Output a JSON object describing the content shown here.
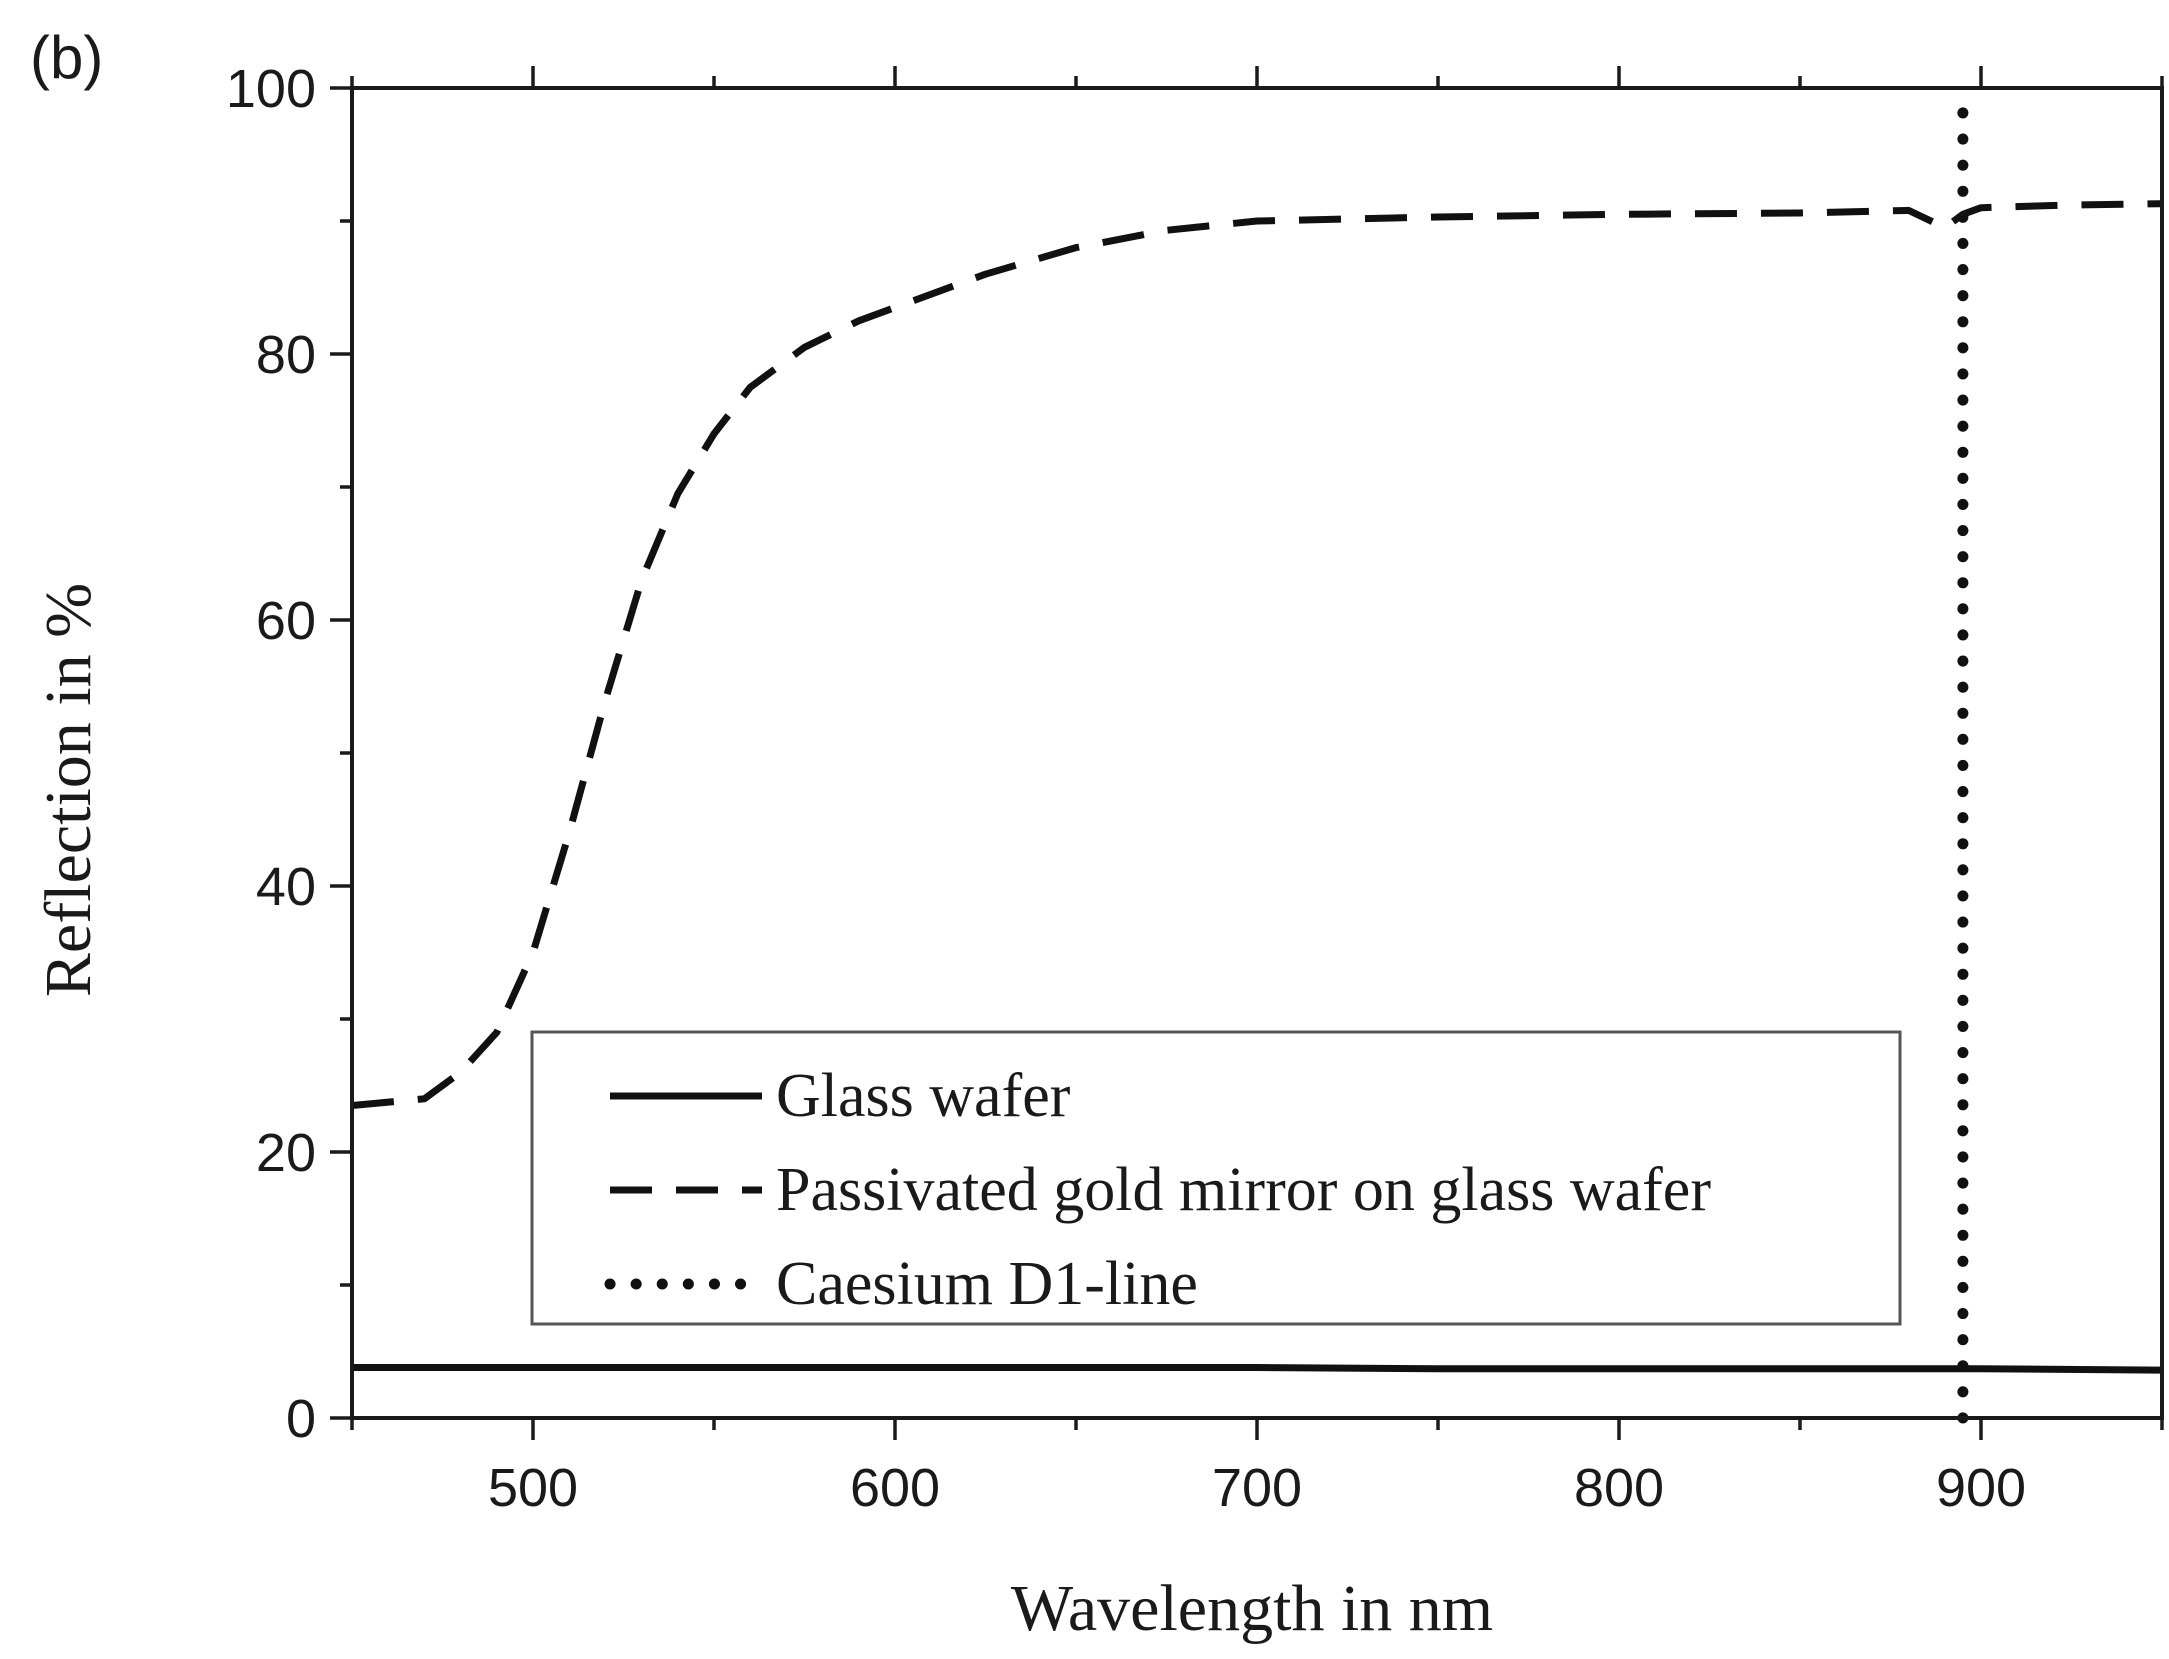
{
  "chart_data": {
    "type": "line",
    "panel_label": "(b)",
    "xlabel": "Wavelength in nm",
    "ylabel": "Reflection in %",
    "xlim": [
      450,
      950
    ],
    "ylim": [
      0,
      100
    ],
    "x_ticks": [
      500,
      600,
      700,
      800,
      900
    ],
    "y_ticks": [
      0,
      20,
      40,
      60,
      80,
      100
    ],
    "x_minor_step": 50,
    "y_minor_step": 10,
    "grid": false,
    "legend_position": "bottom-center",
    "series": [
      {
        "name": "Glass wafer",
        "style": "solid",
        "color": "#111111",
        "x": [
          450,
          500,
          550,
          600,
          650,
          700,
          750,
          800,
          850,
          900,
          950
        ],
        "y": [
          3.8,
          3.8,
          3.8,
          3.8,
          3.8,
          3.8,
          3.7,
          3.7,
          3.7,
          3.7,
          3.6
        ]
      },
      {
        "name": "Passivated gold mirror on glass wafer",
        "style": "dashed",
        "color": "#111111",
        "x": [
          450,
          470,
          480,
          490,
          500,
          510,
          520,
          530,
          540,
          550,
          560,
          575,
          590,
          600,
          625,
          650,
          675,
          700,
          750,
          800,
          850,
          880,
          890,
          895,
          900,
          925,
          950
        ],
        "y": [
          23.5,
          24,
          26,
          29,
          35,
          44,
          54,
          63,
          69.5,
          74,
          77.5,
          80.5,
          82.5,
          83.5,
          86,
          88,
          89.3,
          90,
          90.3,
          90.5,
          90.6,
          90.8,
          89.5,
          90.5,
          91,
          91.2,
          91.3
        ]
      },
      {
        "name": "Caesium D1-line",
        "style": "dotted",
        "color": "#111111",
        "x": [
          895,
          895
        ],
        "y": [
          0,
          100
        ]
      }
    ]
  }
}
